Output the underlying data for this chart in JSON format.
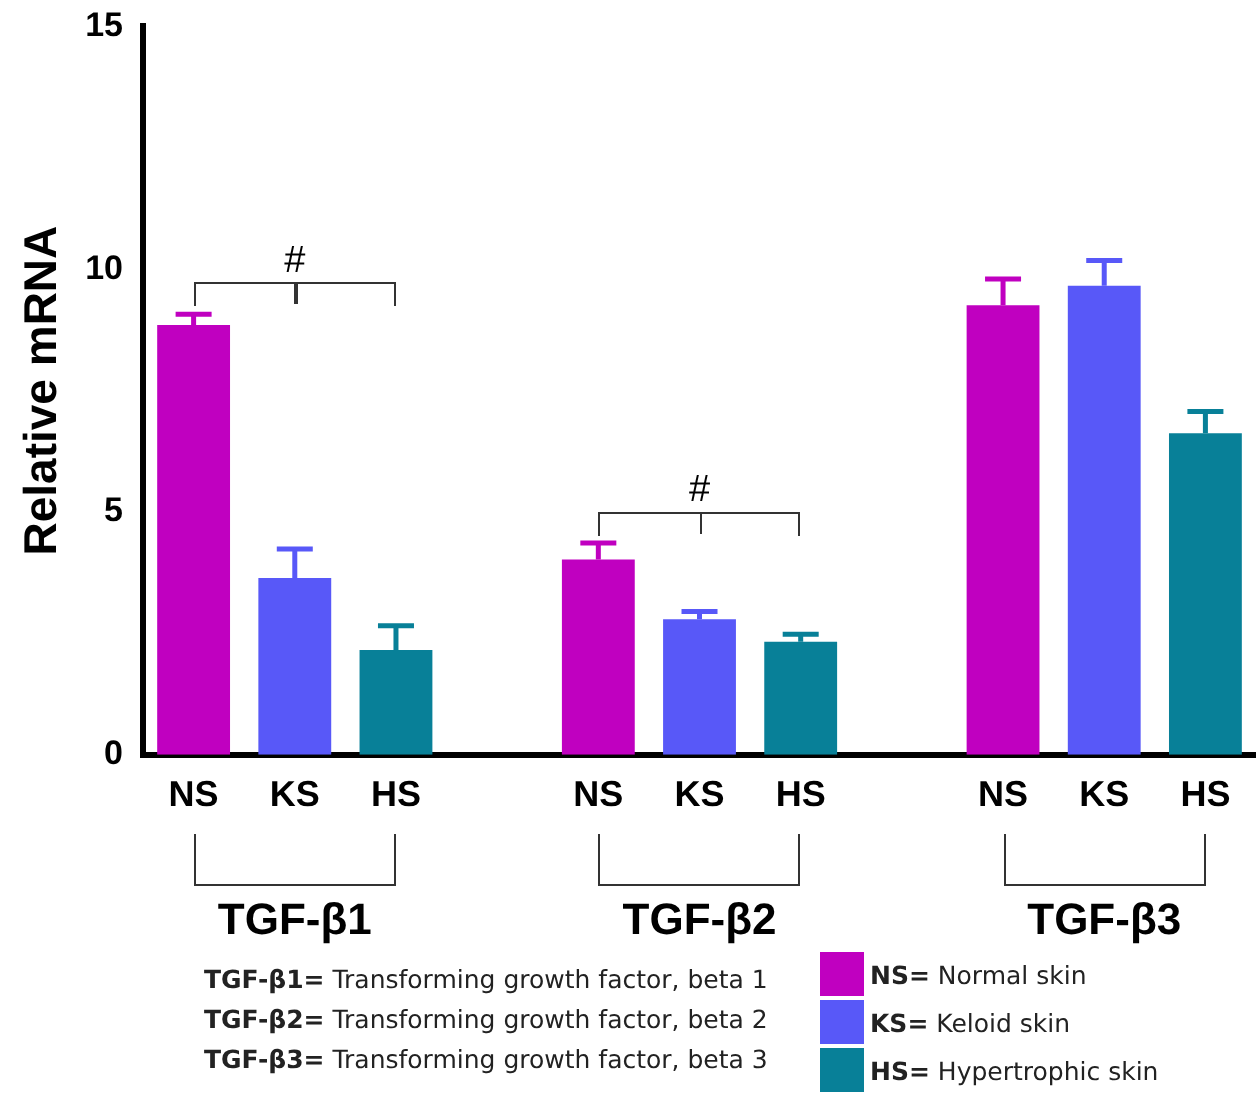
{
  "chart_data": {
    "type": "bar",
    "ylabel": "Relative mRNA",
    "categories": [
      "NS",
      "KS",
      "HS",
      null,
      "NS",
      "KS",
      "HS",
      null,
      "NS",
      "KS",
      "HS"
    ],
    "series": [
      {
        "name": "NS= Normal skin",
        "color": "#c000c0",
        "values": [
          8.85,
          null,
          null,
          null,
          4.02,
          null,
          null,
          null,
          9.26,
          null,
          null
        ],
        "errors": [
          0.22,
          null,
          null,
          null,
          0.34,
          null,
          null,
          null,
          0.54,
          null,
          null
        ]
      },
      {
        "name": "KS= Keloid skin",
        "color": "#5858f8",
        "values": [
          null,
          3.64,
          null,
          null,
          null,
          2.79,
          null,
          null,
          null,
          9.66,
          null
        ],
        "errors": [
          null,
          0.6,
          null,
          null,
          null,
          0.16,
          null,
          null,
          null,
          0.52,
          null
        ]
      },
      {
        "name": "HS= Hypertrophic skin",
        "color": "#088098",
        "values": [
          null,
          null,
          2.16,
          null,
          null,
          null,
          2.33,
          null,
          null,
          null,
          6.62
        ],
        "errors": [
          null,
          null,
          0.5,
          null,
          null,
          null,
          0.15,
          null,
          null,
          null,
          0.45
        ]
      }
    ],
    "ylim": [
      0,
      15
    ],
    "yticks": [
      0,
      5,
      10,
      15
    ],
    "legend": "bottom right",
    "annotations": [
      "#",
      "#",
      "TGF-β1",
      "TGF-β2",
      "TGF-β3",
      "TGF-β1= Transforming growth factor, beta 1",
      "TGF-β2= Transforming growth factor, beta 2",
      "TGF-β3= Transforming growth factor, beta 3"
    ]
  }
}
